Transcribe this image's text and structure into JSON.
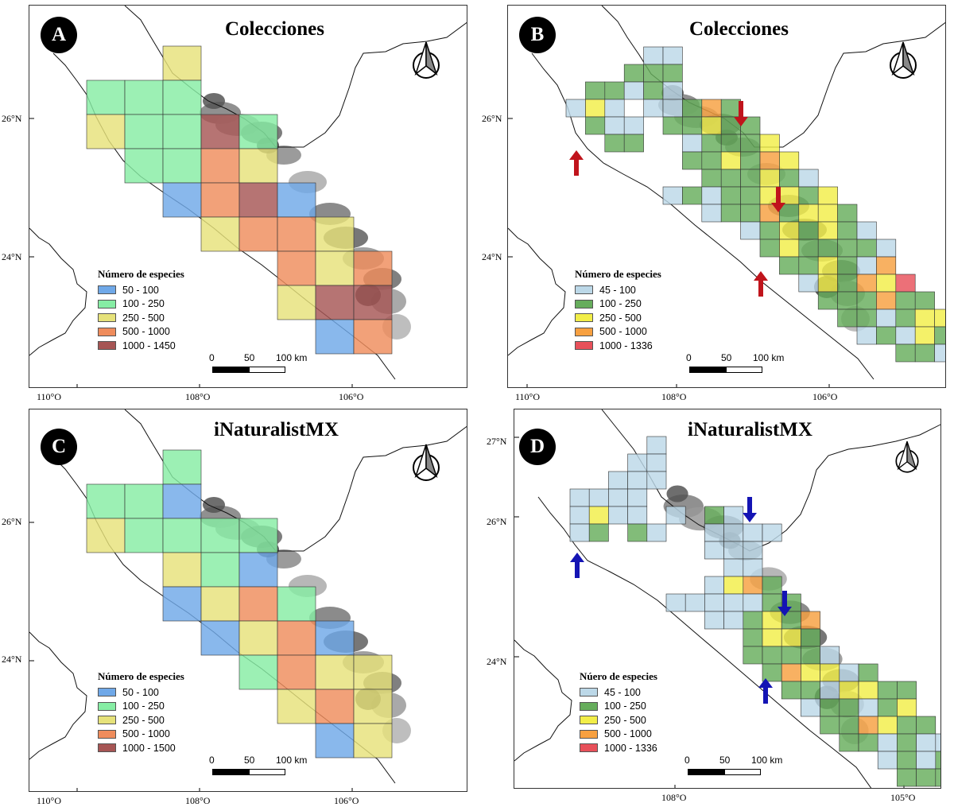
{
  "panels": [
    {
      "letter": "A",
      "title": "Colecciones",
      "legend": {
        "title": "Número de especies",
        "classes": [
          {
            "label": "50 - 100",
            "color": "#6fa8e8"
          },
          {
            "label": "100 - 250",
            "color": "#86eda4"
          },
          {
            "label": "250 - 500",
            "color": "#e6e27a"
          },
          {
            "label": "500 - 1000",
            "color": "#ef8c5c"
          },
          {
            "label": "1000 - 1450",
            "color": "#a65554"
          }
        ]
      },
      "scale": {
        "labels": [
          "0",
          "50",
          "100 km"
        ]
      },
      "lon_labels": [
        "110°O",
        "108°O",
        "106°O"
      ],
      "lat_labels": [
        "26°N",
        "24°N"
      ],
      "style": "coarse"
    },
    {
      "letter": "B",
      "title": "Colecciones",
      "legend": {
        "title": "Número de especies",
        "classes": [
          {
            "label": "45 - 100",
            "color": "#bcd8e8"
          },
          {
            "label": "100 - 250",
            "color": "#66ad5c"
          },
          {
            "label": "250 - 500",
            "color": "#f2ee48"
          },
          {
            "label": "500 - 1000",
            "color": "#f7a040"
          },
          {
            "label": "1000 - 1336",
            "color": "#e8505a"
          }
        ]
      },
      "scale": {
        "labels": [
          "0",
          "50",
          "100 km"
        ]
      },
      "lon_labels": [
        "110°O",
        "108°O",
        "106°O"
      ],
      "lat_labels": [
        "26°N",
        "24°N"
      ],
      "style": "fine",
      "arrow_color": "#c0141c"
    },
    {
      "letter": "C",
      "title": "iNaturalistMX",
      "legend": {
        "title": "Número de especies",
        "classes": [
          {
            "label": "50 - 100",
            "color": "#6fa8e8"
          },
          {
            "label": "100 - 250",
            "color": "#86eda4"
          },
          {
            "label": "250 - 500",
            "color": "#e6e27a"
          },
          {
            "label": "500 - 1000",
            "color": "#ef8c5c"
          },
          {
            "label": "1000 - 1500",
            "color": "#a65554"
          }
        ]
      },
      "scale": {
        "labels": [
          "0",
          "50",
          "100 km"
        ]
      },
      "lon_labels": [
        "110°O",
        "108°O",
        "106°O"
      ],
      "lat_labels": [
        "26°N",
        "24°N"
      ],
      "style": "coarse"
    },
    {
      "letter": "D",
      "title": "iNaturalistMX",
      "legend": {
        "title": "Núero de especies",
        "classes": [
          {
            "label": "45 - 100",
            "color": "#bcd8e8"
          },
          {
            "label": "100 - 250",
            "color": "#66ad5c"
          },
          {
            "label": "250 - 500",
            "color": "#f2ee48"
          },
          {
            "label": "500 - 1000",
            "color": "#f7a040"
          },
          {
            "label": "1000 - 1336",
            "color": "#e8505a"
          }
        ]
      },
      "scale": {
        "labels": [
          "0",
          "50",
          "100 km"
        ]
      },
      "lon_labels": [
        "108°O",
        "105°O"
      ],
      "lat_labels": [
        "27°N",
        "26°N",
        "24°N"
      ],
      "style": "fine",
      "arrow_color": "#1414b4"
    }
  ]
}
